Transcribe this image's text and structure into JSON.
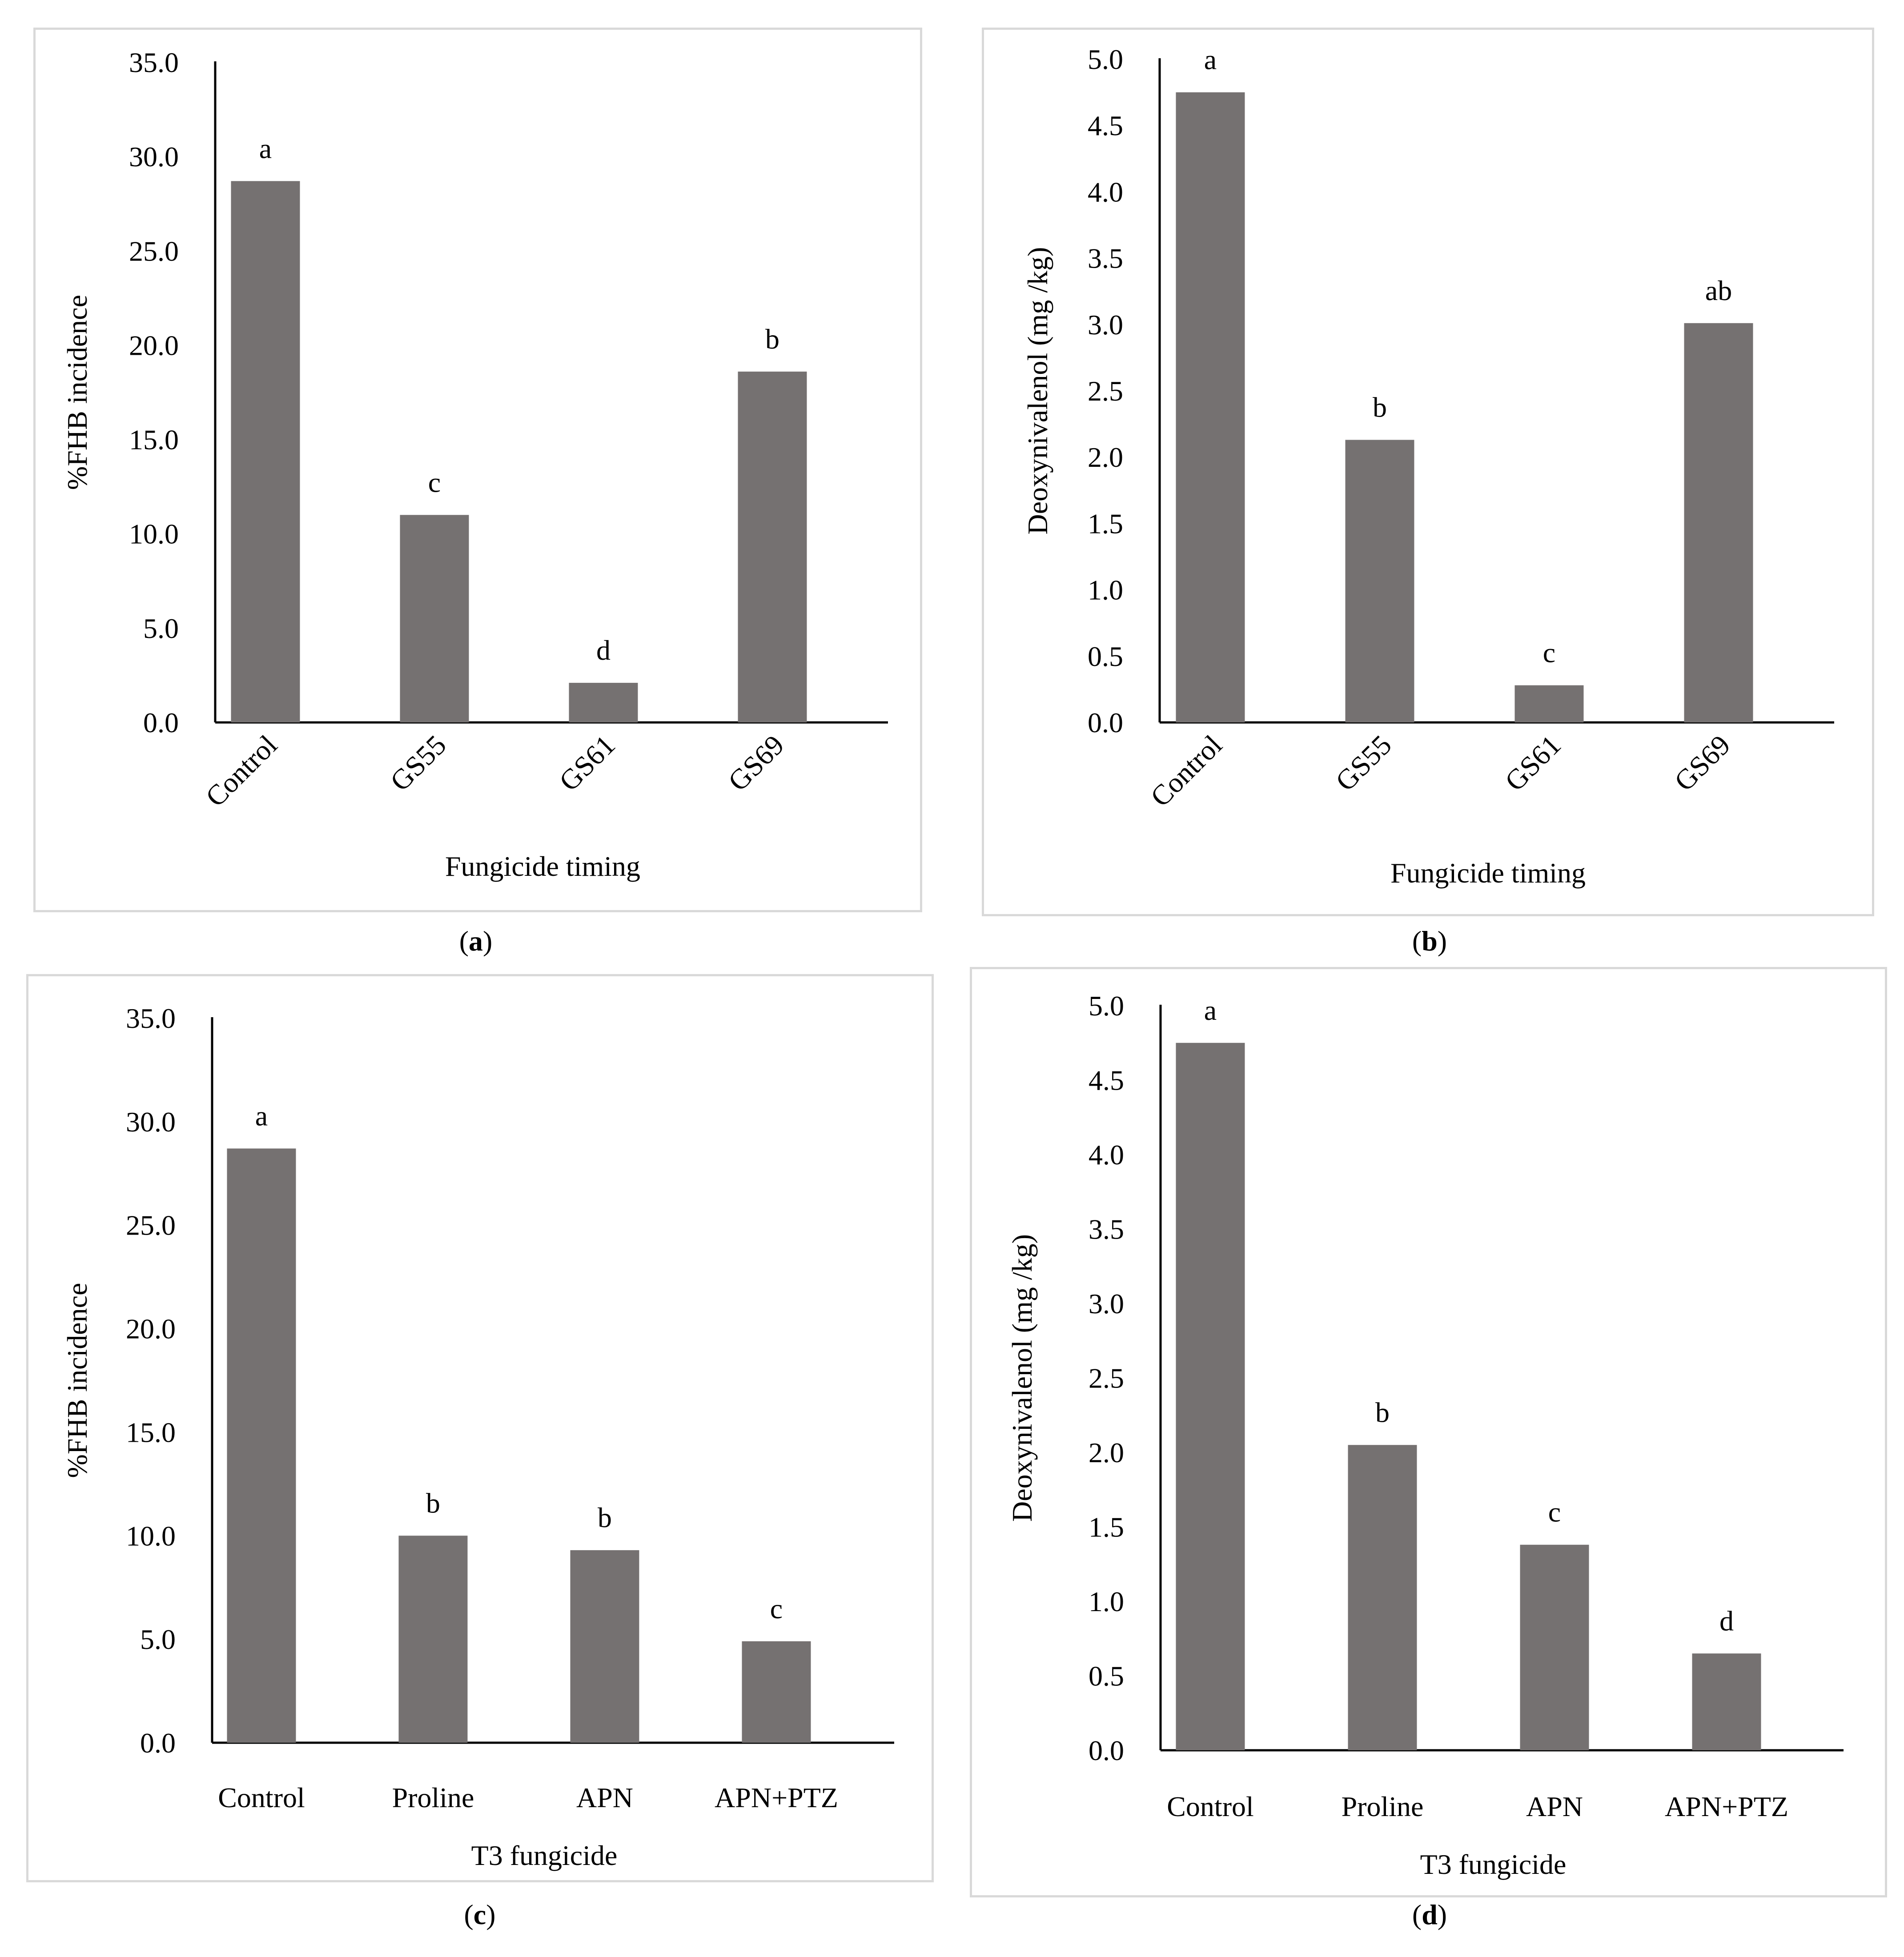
{
  "colors": {
    "bar": "#757171",
    "axis": "#000000",
    "frame": "#d9d9d9"
  },
  "chart_data": [
    {
      "panel": "a",
      "type": "bar",
      "categories": [
        "Control",
        "GS55",
        "GS61",
        "GS69"
      ],
      "values": [
        28.7,
        11.0,
        2.1,
        18.6
      ],
      "significance_letters": [
        "a",
        "c",
        "d",
        "b"
      ],
      "xlabel": "Fungicide timing",
      "ylabel": "%FHB incidence",
      "ylim": [
        0,
        35
      ],
      "yticks": [
        "0.0",
        "5.0",
        "10.0",
        "15.0",
        "20.0",
        "25.0",
        "30.0",
        "35.0"
      ],
      "rotated_labels": true,
      "grid": false
    },
    {
      "panel": "b",
      "type": "bar",
      "categories": [
        "Control",
        "GS55",
        "GS61",
        "GS69"
      ],
      "values": [
        4.75,
        2.13,
        0.28,
        3.01
      ],
      "significance_letters": [
        "a",
        "b",
        "c",
        "ab"
      ],
      "xlabel": "Fungicide timing",
      "ylabel": "Deoxynivalenol (mg /kg)",
      "ylim": [
        0,
        5
      ],
      "yticks": [
        "0.0",
        "0.5",
        "1.0",
        "1.5",
        "2.0",
        "2.5",
        "3.0",
        "3.5",
        "4.0",
        "4.5",
        "5.0"
      ],
      "rotated_labels": true,
      "grid": false
    },
    {
      "panel": "c",
      "type": "bar",
      "categories": [
        "Control",
        "Proline",
        "APN",
        "APN+PTZ"
      ],
      "values": [
        28.7,
        10.0,
        9.3,
        4.9
      ],
      "significance_letters": [
        "a",
        "b",
        "b",
        "c"
      ],
      "xlabel": "T3 fungicide",
      "ylabel": "%FHB incidence",
      "ylim": [
        0,
        35
      ],
      "yticks": [
        "0.0",
        "5.0",
        "10.0",
        "15.0",
        "20.0",
        "25.0",
        "30.0",
        "35.0"
      ],
      "rotated_labels": false,
      "grid": false
    },
    {
      "panel": "d",
      "type": "bar",
      "categories": [
        "Control",
        "Proline",
        "APN",
        "APN+PTZ"
      ],
      "values": [
        4.75,
        2.05,
        1.38,
        0.65
      ],
      "significance_letters": [
        "a",
        "b",
        "c",
        "d"
      ],
      "xlabel": "T3 fungicide",
      "ylabel": "Deoxynivalenol (mg /kg)",
      "ylim": [
        0,
        5
      ],
      "yticks": [
        "0.0",
        "0.5",
        "1.0",
        "1.5",
        "2.0",
        "2.5",
        "3.0",
        "3.5",
        "4.0",
        "4.5",
        "5.0"
      ],
      "rotated_labels": false,
      "grid": false
    }
  ],
  "captions": {
    "a": "a",
    "b": "b",
    "c": "c",
    "d": "d"
  }
}
